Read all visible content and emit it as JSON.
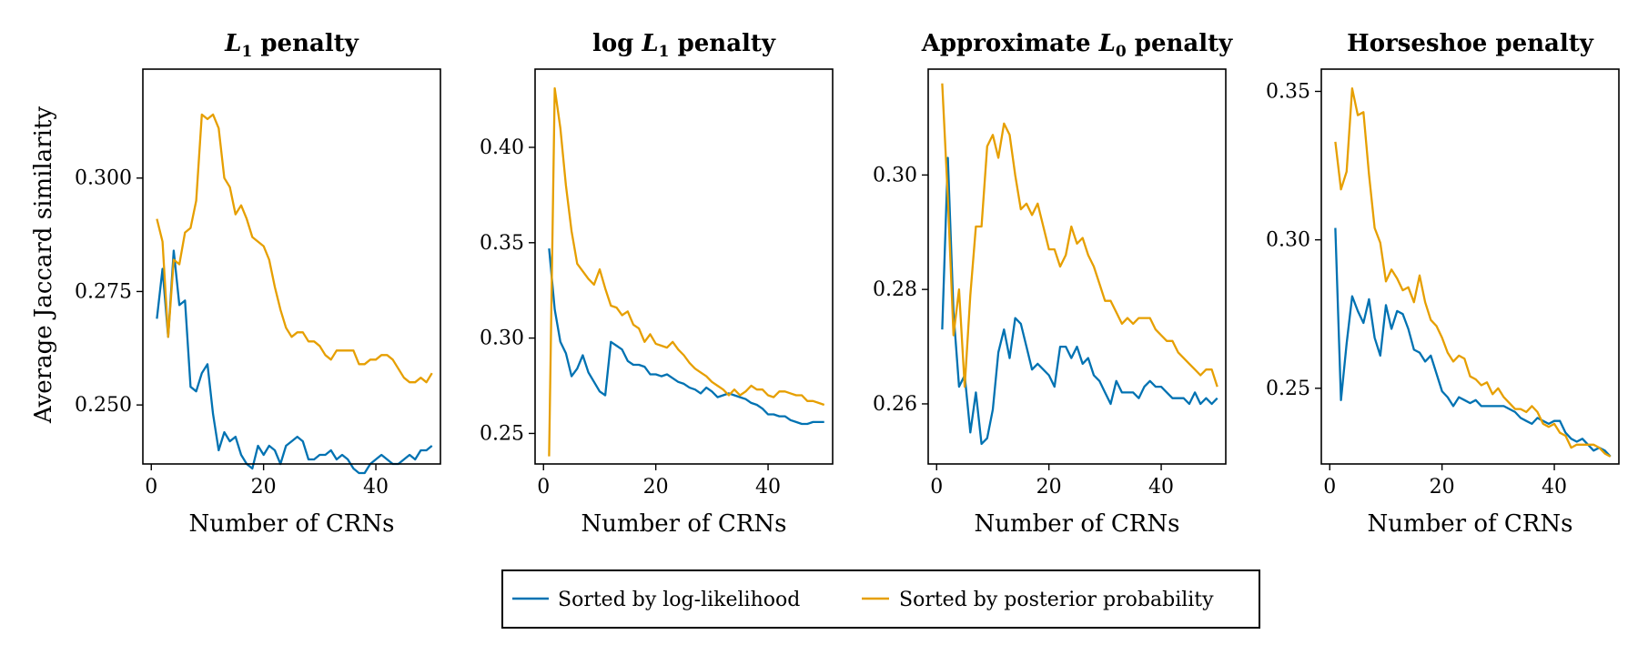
{
  "figure": {
    "ylabel_shared": "Average Jaccard similarity"
  },
  "legend": {
    "entries": [
      {
        "label": "Sorted by log-likelihood",
        "color": "#0072b2"
      },
      {
        "label": "Sorted by posterior probability",
        "color": "#e69f00"
      }
    ]
  },
  "chart_data": [
    {
      "type": "line",
      "title": "L1 penalty",
      "title_base": "L",
      "title_sub": "1",
      "title_suffix": " penalty",
      "title_prefix": "",
      "xlabel": "Number of CRNs",
      "ylabel": "Average Jaccard similarity",
      "xlim": [
        -1.5,
        51.5
      ],
      "ylim": [
        0.237,
        0.324
      ],
      "xticks": [
        0,
        20,
        40
      ],
      "yticks": [
        0.25,
        0.275,
        0.3
      ],
      "ytick_labels": [
        "0.250",
        "0.275",
        "0.300"
      ],
      "grid": false,
      "series": [
        {
          "name": "Sorted by log-likelihood",
          "color": "#0072b2",
          "x": [
            1,
            2,
            3,
            4,
            5,
            6,
            7,
            8,
            9,
            10,
            11,
            12,
            13,
            14,
            15,
            16,
            17,
            18,
            19,
            20,
            21,
            22,
            23,
            24,
            25,
            26,
            27,
            28,
            29,
            30,
            31,
            32,
            33,
            34,
            35,
            36,
            37,
            38,
            39,
            40,
            41,
            42,
            43,
            44,
            45,
            46,
            47,
            48,
            49,
            50
          ],
          "y": [
            0.269,
            0.28,
            0.265,
            0.284,
            0.272,
            0.273,
            0.254,
            0.253,
            0.257,
            0.259,
            0.248,
            0.24,
            0.244,
            0.242,
            0.243,
            0.239,
            0.237,
            0.236,
            0.241,
            0.239,
            0.241,
            0.24,
            0.237,
            0.241,
            0.242,
            0.243,
            0.242,
            0.238,
            0.238,
            0.239,
            0.239,
            0.24,
            0.238,
            0.239,
            0.238,
            0.236,
            0.235,
            0.235,
            0.237,
            0.238,
            0.239,
            0.238,
            0.237,
            0.237,
            0.238,
            0.239,
            0.238,
            0.24,
            0.24,
            0.241
          ]
        },
        {
          "name": "Sorted by posterior probability",
          "color": "#e69f00",
          "x": [
            1,
            2,
            3,
            4,
            5,
            6,
            7,
            8,
            9,
            10,
            11,
            12,
            13,
            14,
            15,
            16,
            17,
            18,
            19,
            20,
            21,
            22,
            23,
            24,
            25,
            26,
            27,
            28,
            29,
            30,
            31,
            32,
            33,
            34,
            35,
            36,
            37,
            38,
            39,
            40,
            41,
            42,
            43,
            44,
            45,
            46,
            47,
            48,
            49,
            50
          ],
          "y": [
            0.291,
            0.286,
            0.265,
            0.282,
            0.281,
            0.288,
            0.289,
            0.295,
            0.314,
            0.313,
            0.314,
            0.311,
            0.3,
            0.298,
            0.292,
            0.294,
            0.291,
            0.287,
            0.286,
            0.285,
            0.282,
            0.276,
            0.271,
            0.267,
            0.265,
            0.266,
            0.266,
            0.264,
            0.264,
            0.263,
            0.261,
            0.26,
            0.262,
            0.262,
            0.262,
            0.262,
            0.259,
            0.259,
            0.26,
            0.26,
            0.261,
            0.261,
            0.26,
            0.258,
            0.256,
            0.255,
            0.255,
            0.256,
            0.255,
            0.257
          ]
        }
      ]
    },
    {
      "type": "line",
      "title": "log L1 penalty",
      "title_prefix": "log ",
      "title_base": "L",
      "title_sub": "1",
      "title_suffix": " penalty",
      "xlabel": "Number of CRNs",
      "ylabel": "",
      "xlim": [
        -1.5,
        51.5
      ],
      "ylim": [
        0.234,
        0.441
      ],
      "xticks": [
        0,
        20,
        40
      ],
      "yticks": [
        0.25,
        0.3,
        0.35,
        0.4
      ],
      "ytick_labels": [
        "0.25",
        "0.30",
        "0.35",
        "0.40"
      ],
      "grid": false,
      "series": [
        {
          "name": "Sorted by log-likelihood",
          "color": "#0072b2",
          "x": [
            1,
            2,
            3,
            4,
            5,
            6,
            7,
            8,
            9,
            10,
            11,
            12,
            13,
            14,
            15,
            16,
            17,
            18,
            19,
            20,
            21,
            22,
            23,
            24,
            25,
            26,
            27,
            28,
            29,
            30,
            31,
            32,
            33,
            34,
            35,
            36,
            37,
            38,
            39,
            40,
            41,
            42,
            43,
            44,
            45,
            46,
            47,
            48,
            49,
            50
          ],
          "y": [
            0.347,
            0.315,
            0.298,
            0.292,
            0.28,
            0.284,
            0.291,
            0.282,
            0.277,
            0.272,
            0.27,
            0.298,
            0.296,
            0.294,
            0.288,
            0.286,
            0.286,
            0.285,
            0.281,
            0.281,
            0.28,
            0.281,
            0.279,
            0.277,
            0.276,
            0.274,
            0.273,
            0.271,
            0.274,
            0.272,
            0.269,
            0.27,
            0.271,
            0.27,
            0.269,
            0.268,
            0.266,
            0.265,
            0.263,
            0.26,
            0.26,
            0.259,
            0.259,
            0.257,
            0.256,
            0.255,
            0.255,
            0.256,
            0.256,
            0.256
          ]
        },
        {
          "name": "Sorted by posterior probability",
          "color": "#e69f00",
          "x": [
            1,
            2,
            3,
            4,
            5,
            6,
            7,
            8,
            9,
            10,
            11,
            12,
            13,
            14,
            15,
            16,
            17,
            18,
            19,
            20,
            21,
            22,
            23,
            24,
            25,
            26,
            27,
            28,
            29,
            30,
            31,
            32,
            33,
            34,
            35,
            36,
            37,
            38,
            39,
            40,
            41,
            42,
            43,
            44,
            45,
            46,
            47,
            48,
            49,
            50
          ],
          "y": [
            0.238,
            0.431,
            0.41,
            0.38,
            0.356,
            0.339,
            0.335,
            0.331,
            0.328,
            0.336,
            0.326,
            0.317,
            0.316,
            0.312,
            0.314,
            0.307,
            0.305,
            0.298,
            0.302,
            0.297,
            0.296,
            0.295,
            0.298,
            0.294,
            0.291,
            0.287,
            0.284,
            0.282,
            0.28,
            0.277,
            0.275,
            0.273,
            0.27,
            0.273,
            0.27,
            0.272,
            0.275,
            0.273,
            0.273,
            0.27,
            0.269,
            0.272,
            0.272,
            0.271,
            0.27,
            0.27,
            0.267,
            0.267,
            0.266,
            0.265
          ]
        }
      ]
    },
    {
      "type": "line",
      "title": "Approximate L0 penalty",
      "title_prefix": "Approximate ",
      "title_base": "L",
      "title_sub": "0",
      "title_suffix": " penalty",
      "xlabel": "Number of CRNs",
      "ylabel": "",
      "xlim": [
        -1.5,
        51.5
      ],
      "ylim": [
        0.2495,
        0.3185
      ],
      "xticks": [
        0,
        20,
        40
      ],
      "yticks": [
        0.26,
        0.28,
        0.3
      ],
      "ytick_labels": [
        "0.26",
        "0.28",
        "0.30"
      ],
      "grid": false,
      "series": [
        {
          "name": "Sorted by log-likelihood",
          "color": "#0072b2",
          "x": [
            1,
            2,
            3,
            4,
            5,
            6,
            7,
            8,
            9,
            10,
            11,
            12,
            13,
            14,
            15,
            16,
            17,
            18,
            19,
            20,
            21,
            22,
            23,
            24,
            25,
            26,
            27,
            28,
            29,
            30,
            31,
            32,
            33,
            34,
            35,
            36,
            37,
            38,
            39,
            40,
            41,
            42,
            43,
            44,
            45,
            46,
            47,
            48,
            49,
            50
          ],
          "y": [
            0.273,
            0.303,
            0.276,
            0.263,
            0.265,
            0.255,
            0.262,
            0.253,
            0.254,
            0.259,
            0.269,
            0.273,
            0.268,
            0.275,
            0.274,
            0.27,
            0.266,
            0.267,
            0.266,
            0.265,
            0.263,
            0.27,
            0.27,
            0.268,
            0.27,
            0.267,
            0.268,
            0.265,
            0.264,
            0.262,
            0.26,
            0.264,
            0.262,
            0.262,
            0.262,
            0.261,
            0.263,
            0.264,
            0.263,
            0.263,
            0.262,
            0.261,
            0.261,
            0.261,
            0.26,
            0.262,
            0.26,
            0.261,
            0.26,
            0.261
          ]
        },
        {
          "name": "Sorted by posterior probability",
          "color": "#e69f00",
          "x": [
            1,
            2,
            3,
            4,
            5,
            6,
            7,
            8,
            9,
            10,
            11,
            12,
            13,
            14,
            15,
            16,
            17,
            18,
            19,
            20,
            21,
            22,
            23,
            24,
            25,
            26,
            27,
            28,
            29,
            30,
            31,
            32,
            33,
            34,
            35,
            36,
            37,
            38,
            39,
            40,
            41,
            42,
            43,
            44,
            45,
            46,
            47,
            48,
            49,
            50
          ],
          "y": [
            0.316,
            0.296,
            0.272,
            0.28,
            0.263,
            0.279,
            0.291,
            0.291,
            0.305,
            0.307,
            0.303,
            0.309,
            0.307,
            0.3,
            0.294,
            0.295,
            0.293,
            0.295,
            0.291,
            0.287,
            0.287,
            0.284,
            0.286,
            0.291,
            0.288,
            0.289,
            0.286,
            0.284,
            0.281,
            0.278,
            0.278,
            0.276,
            0.274,
            0.275,
            0.274,
            0.275,
            0.275,
            0.275,
            0.273,
            0.272,
            0.271,
            0.271,
            0.269,
            0.268,
            0.267,
            0.266,
            0.265,
            0.266,
            0.266,
            0.263
          ]
        }
      ]
    },
    {
      "type": "line",
      "title": "Horseshoe penalty",
      "title_prefix": "Horseshoe penalty",
      "title_base": "",
      "title_sub": "",
      "title_suffix": "",
      "xlabel": "Number of CRNs",
      "ylabel": "",
      "xlim": [
        -1.5,
        51.5
      ],
      "ylim": [
        0.2245,
        0.3575
      ],
      "xticks": [
        0,
        20,
        40
      ],
      "yticks": [
        0.25,
        0.3,
        0.35
      ],
      "ytick_labels": [
        "0.25",
        "0.30",
        "0.35"
      ],
      "grid": false,
      "series": [
        {
          "name": "Sorted by log-likelihood",
          "color": "#0072b2",
          "x": [
            1,
            2,
            3,
            4,
            5,
            6,
            7,
            8,
            9,
            10,
            11,
            12,
            13,
            14,
            15,
            16,
            17,
            18,
            19,
            20,
            21,
            22,
            23,
            24,
            25,
            26,
            27,
            28,
            29,
            30,
            31,
            32,
            33,
            34,
            35,
            36,
            37,
            38,
            39,
            40,
            41,
            42,
            43,
            44,
            45,
            46,
            47,
            48,
            49,
            50
          ],
          "y": [
            0.304,
            0.246,
            0.265,
            0.281,
            0.276,
            0.272,
            0.28,
            0.267,
            0.261,
            0.278,
            0.27,
            0.276,
            0.275,
            0.27,
            0.263,
            0.262,
            0.259,
            0.261,
            0.255,
            0.249,
            0.247,
            0.244,
            0.247,
            0.246,
            0.245,
            0.246,
            0.244,
            0.244,
            0.244,
            0.244,
            0.244,
            0.243,
            0.242,
            0.24,
            0.239,
            0.238,
            0.24,
            0.239,
            0.238,
            0.239,
            0.239,
            0.235,
            0.233,
            0.232,
            0.233,
            0.231,
            0.229,
            0.23,
            0.229,
            0.227
          ]
        },
        {
          "name": "Sorted by posterior probability",
          "color": "#e69f00",
          "x": [
            1,
            2,
            3,
            4,
            5,
            6,
            7,
            8,
            9,
            10,
            11,
            12,
            13,
            14,
            15,
            16,
            17,
            18,
            19,
            20,
            21,
            22,
            23,
            24,
            25,
            26,
            27,
            28,
            29,
            30,
            31,
            32,
            33,
            34,
            35,
            36,
            37,
            38,
            39,
            40,
            41,
            42,
            43,
            44,
            45,
            46,
            47,
            48,
            49,
            50
          ],
          "y": [
            0.333,
            0.317,
            0.323,
            0.351,
            0.342,
            0.343,
            0.322,
            0.304,
            0.299,
            0.286,
            0.29,
            0.287,
            0.283,
            0.284,
            0.279,
            0.288,
            0.279,
            0.273,
            0.271,
            0.267,
            0.262,
            0.259,
            0.261,
            0.26,
            0.254,
            0.253,
            0.251,
            0.252,
            0.248,
            0.25,
            0.247,
            0.245,
            0.243,
            0.243,
            0.242,
            0.244,
            0.242,
            0.238,
            0.237,
            0.238,
            0.235,
            0.234,
            0.23,
            0.231,
            0.231,
            0.231,
            0.231,
            0.23,
            0.228,
            0.227
          ]
        }
      ]
    }
  ]
}
